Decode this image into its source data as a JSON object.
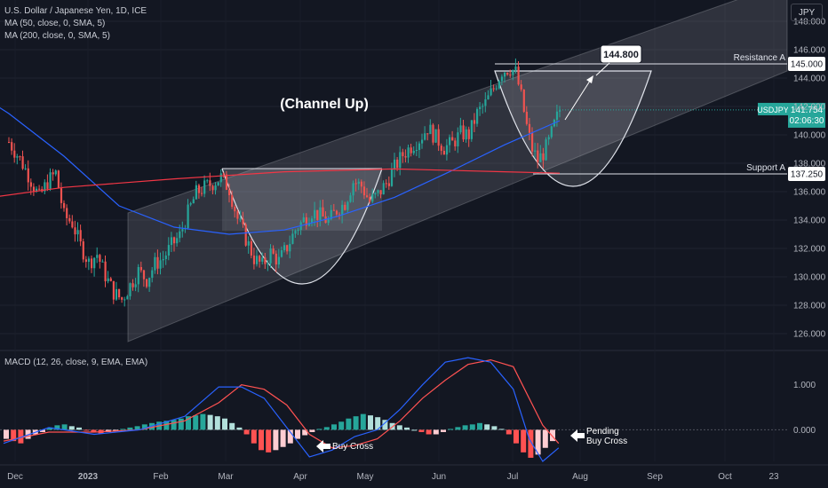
{
  "header": {
    "symbol_line": "U.S. Dollar / Japanese Yen, 1D, ICE",
    "ma50_line": "MA (50, close, 0, SMA, 5)",
    "ma200_line": "MA (200, close, 0, SMA, 5)",
    "currency_button": "JPY"
  },
  "colors": {
    "background": "#131722",
    "up": "#26a69a",
    "down": "#ef5350",
    "ma50": "#2962ff",
    "ma200": "#f23645",
    "macd_line": "#2962ff",
    "signal_line": "#ff5252",
    "price_tag": "#26a69a"
  },
  "chart_data": [
    {
      "type": "candlestick",
      "ylim": [
        125,
        149
      ],
      "y_ticks": [
        "148.000",
        "146.000",
        "144.000",
        "142.000",
        "140.000",
        "138.000",
        "136.000",
        "134.000",
        "132.000",
        "130.000",
        "128.000",
        "126.000"
      ],
      "x_labels": [
        "Dec",
        "2023",
        "Feb",
        "Mar",
        "Apr",
        "May",
        "Jun",
        "Jul",
        "Aug",
        "Sep",
        "Oct",
        "23"
      ],
      "last_price": {
        "symbol": "USDJPY",
        "value": "141.754",
        "countdown": "02:06:30"
      },
      "levels": [
        {
          "name": "Resistance A",
          "value": 145.0,
          "label": "145.000"
        },
        {
          "name": "Support A",
          "value": 137.25,
          "label": "137.250"
        }
      ],
      "target": {
        "label": "144.800",
        "value": 144.8
      },
      "channel_annotation": "(Channel Up)",
      "series_close_path": [
        [
          0,
          139.5
        ],
        [
          4,
          138.3
        ],
        [
          7,
          137.2
        ],
        [
          11,
          135.6
        ],
        [
          14,
          136.7
        ],
        [
          17,
          137.3
        ],
        [
          20,
          134.3
        ],
        [
          23,
          133.8
        ],
        [
          26,
          132.2
        ],
        [
          29,
          131.0
        ],
        [
          32,
          131.6
        ],
        [
          35,
          130.1
        ],
        [
          38,
          128.9
        ],
        [
          41,
          128.4
        ],
        [
          44,
          129.4
        ],
        [
          47,
          130.4
        ],
        [
          50,
          129.8
        ],
        [
          53,
          130.9
        ],
        [
          56,
          131.3
        ],
        [
          59,
          132.2
        ],
        [
          62,
          132.9
        ],
        [
          65,
          134.5
        ],
        [
          68,
          135.9
        ],
        [
          71,
          136.3
        ],
        [
          74,
          136.6
        ],
        [
          77,
          137.0
        ],
        [
          80,
          136.2
        ],
        [
          83,
          134.1
        ],
        [
          86,
          132.7
        ],
        [
          89,
          131.3
        ],
        [
          92,
          130.8
        ],
        [
          95,
          131.7
        ],
        [
          98,
          131.1
        ],
        [
          101,
          132.1
        ],
        [
          104,
          133.3
        ],
        [
          107,
          134.0
        ],
        [
          110,
          134.6
        ],
        [
          113,
          134.3
        ],
        [
          116,
          133.9
        ],
        [
          119,
          134.7
        ],
        [
          122,
          135.2
        ],
        [
          125,
          136.7
        ],
        [
          128,
          136.4
        ],
        [
          131,
          135.3
        ],
        [
          134,
          135.8
        ],
        [
          137,
          136.6
        ],
        [
          140,
          137.7
        ],
        [
          143,
          138.6
        ],
        [
          146,
          139.2
        ],
        [
          149,
          139.7
        ],
        [
          152,
          140.5
        ],
        [
          155,
          139.8
        ],
        [
          158,
          139.1
        ],
        [
          161,
          139.4
        ],
        [
          164,
          140.1
        ],
        [
          167,
          140.0
        ],
        [
          170,
          141.5
        ],
        [
          173,
          142.2
        ],
        [
          176,
          143.3
        ],
        [
          179,
          144.5
        ],
        [
          182,
          144.7
        ],
        [
          184,
          144.4
        ],
        [
          186,
          142.7
        ],
        [
          188,
          140.6
        ],
        [
          190,
          139.0
        ],
        [
          192,
          138.2
        ],
        [
          194,
          138.7
        ],
        [
          196,
          139.5
        ],
        [
          198,
          140.7
        ],
        [
          200,
          141.754
        ]
      ],
      "ma50": [
        [
          -40,
          145.5
        ],
        [
          -20,
          144.0
        ],
        [
          0,
          141.5
        ],
        [
          20,
          138.5
        ],
        [
          40,
          135.0
        ],
        [
          60,
          133.5
        ],
        [
          80,
          133.0
        ],
        [
          100,
          133.3
        ],
        [
          120,
          134.3
        ],
        [
          140,
          135.6
        ],
        [
          160,
          137.4
        ],
        [
          180,
          139.3
        ],
        [
          200,
          141.0
        ]
      ],
      "ma200": [
        [
          -40,
          134.8
        ],
        [
          -10,
          135.5
        ],
        [
          20,
          136.3
        ],
        [
          60,
          136.9
        ],
        [
          100,
          137.4
        ],
        [
          140,
          137.6
        ],
        [
          180,
          137.4
        ],
        [
          200,
          137.3
        ]
      ]
    },
    {
      "type": "histogram",
      "name": "MACD (12, 26, close, 9, EMA, EMA)",
      "ylim": [
        -0.7,
        1.7
      ],
      "y_ticks": [
        "1.000",
        "0.000"
      ],
      "annotations": [
        "Buy Cross",
        "Pending Buy Cross"
      ],
      "macd": [
        [
          0,
          -0.3
        ],
        [
          20,
          0.05
        ],
        [
          40,
          -0.1
        ],
        [
          60,
          0.0
        ],
        [
          80,
          0.3
        ],
        [
          95,
          0.95
        ],
        [
          105,
          0.95
        ],
        [
          115,
          0.7
        ],
        [
          125,
          0.05
        ],
        [
          135,
          -0.6
        ],
        [
          145,
          -0.45
        ],
        [
          155,
          -0.15
        ],
        [
          165,
          0.0
        ],
        [
          175,
          0.45
        ],
        [
          185,
          1.0
        ],
        [
          195,
          1.5
        ],
        [
          205,
          1.6
        ],
        [
          215,
          1.5
        ],
        [
          225,
          0.9
        ],
        [
          232,
          -0.2
        ],
        [
          238,
          -0.7
        ],
        [
          245,
          -0.4
        ]
      ],
      "signal": [
        [
          0,
          -0.25
        ],
        [
          20,
          -0.05
        ],
        [
          40,
          -0.05
        ],
        [
          60,
          0.0
        ],
        [
          80,
          0.2
        ],
        [
          95,
          0.6
        ],
        [
          105,
          1.0
        ],
        [
          115,
          0.9
        ],
        [
          125,
          0.55
        ],
        [
          135,
          -0.1
        ],
        [
          145,
          -0.4
        ],
        [
          155,
          -0.35
        ],
        [
          165,
          -0.2
        ],
        [
          175,
          0.2
        ],
        [
          185,
          0.7
        ],
        [
          195,
          1.1
        ],
        [
          205,
          1.45
        ],
        [
          215,
          1.55
        ],
        [
          225,
          1.4
        ],
        [
          232,
          0.7
        ],
        [
          238,
          0.1
        ],
        [
          245,
          -0.3
        ]
      ],
      "histogram": [
        -0.2,
        -0.25,
        -0.3,
        -0.2,
        -0.1,
        -0.05,
        0.05,
        0.1,
        0.12,
        0.08,
        0.05,
        -0.02,
        -0.06,
        -0.08,
        -0.05,
        -0.02,
        0.02,
        0.05,
        0.08,
        0.12,
        0.15,
        0.18,
        0.2,
        0.22,
        0.25,
        0.3,
        0.32,
        0.35,
        0.33,
        0.3,
        0.25,
        0.15,
        0.05,
        -0.1,
        -0.3,
        -0.45,
        -0.5,
        -0.45,
        -0.38,
        -0.3,
        -0.2,
        -0.12,
        -0.05,
        0.02,
        0.06,
        0.12,
        0.18,
        0.25,
        0.3,
        0.35,
        0.32,
        0.28,
        0.22,
        0.15,
        0.1,
        0.05,
        0.0,
        -0.05,
        -0.1,
        -0.1,
        -0.05,
        0.02,
        0.06,
        0.1,
        0.12,
        0.15,
        0.12,
        0.08,
        0.02,
        -0.1,
        -0.3,
        -0.5,
        -0.62,
        -0.55,
        -0.4,
        -0.25
      ]
    }
  ]
}
